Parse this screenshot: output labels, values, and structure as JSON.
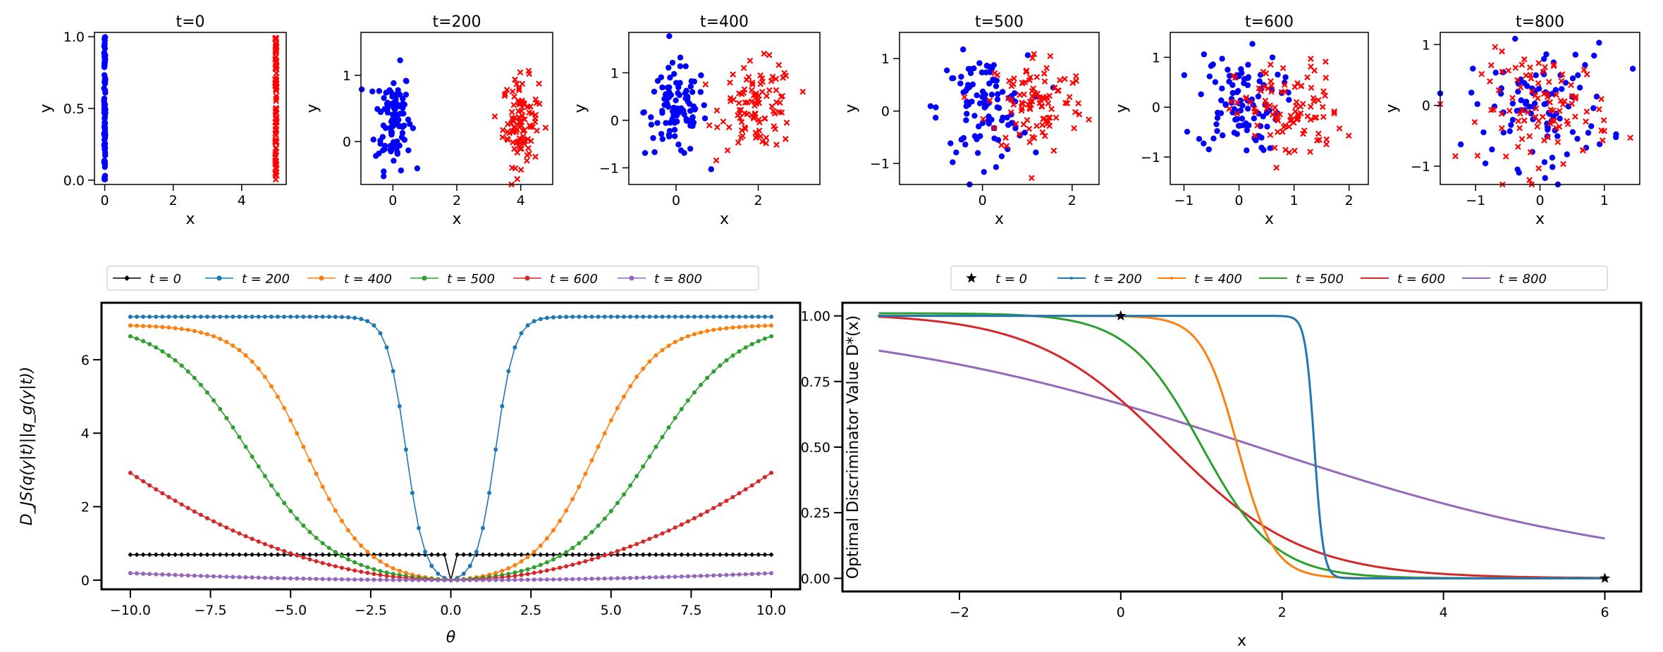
{
  "chart_data": [
    {
      "type": "scatter",
      "title": "t=0",
      "xlabel": "x",
      "ylabel": "y",
      "xlim": [
        -0.3,
        5.3
      ],
      "ylim": [
        -0.03,
        1.03
      ],
      "xticks": [
        0,
        2,
        4
      ],
      "yticks": [
        0.0,
        0.5,
        1.0
      ],
      "xtick_labels": [
        "0",
        "2",
        "4"
      ],
      "ytick_labels": [
        "0.0",
        "0.5",
        "1.0"
      ],
      "series": [
        {
          "marker": "circle",
          "color": "#0000ff",
          "x_center": 0,
          "x_spread": 0,
          "y_center": 0.5,
          "y_spread": 0.5,
          "distribution": "uniform",
          "count": 100
        },
        {
          "marker": "x",
          "color": "#ff0000",
          "x_center": 5,
          "x_spread": 0,
          "y_center": 0.5,
          "y_spread": 0.5,
          "distribution": "uniform",
          "count": 100
        }
      ]
    },
    {
      "type": "scatter",
      "title": "t=200",
      "xlabel": "x",
      "ylabel": "y",
      "xlim": [
        -1.0,
        5.0
      ],
      "ylim": [
        -0.65,
        1.65
      ],
      "xticks": [
        0,
        2,
        4
      ],
      "yticks": [
        0,
        1
      ],
      "xtick_labels": [
        "0",
        "2",
        "4"
      ],
      "ytick_labels": [
        "0",
        "1"
      ],
      "series": [
        {
          "marker": "circle",
          "color": "#0000ff",
          "x_center": 0.0,
          "x_spread": 0.28,
          "y_center": 0.35,
          "y_spread": 0.38,
          "distribution": "normal",
          "count": 100
        },
        {
          "marker": "x",
          "color": "#ff0000",
          "x_center": 4.0,
          "x_spread": 0.28,
          "y_center": 0.3,
          "y_spread": 0.33,
          "distribution": "normal",
          "count": 100
        }
      ]
    },
    {
      "type": "scatter",
      "title": "t=400",
      "xlabel": "x",
      "ylabel": "y",
      "xlim": [
        -1.15,
        3.5
      ],
      "ylim": [
        -1.35,
        1.85
      ],
      "xticks": [
        0,
        2
      ],
      "yticks": [
        -1,
        0,
        1
      ],
      "xtick_labels": [
        "0",
        "2"
      ],
      "ytick_labels": [
        "−1",
        "0",
        "1"
      ],
      "series": [
        {
          "marker": "circle",
          "color": "#0000ff",
          "x_center": 0.0,
          "x_spread": 0.38,
          "y_center": 0.2,
          "y_spread": 0.48,
          "distribution": "normal",
          "count": 100
        },
        {
          "marker": "x",
          "color": "#ff0000",
          "x_center": 2.0,
          "x_spread": 0.45,
          "y_center": 0.3,
          "y_spread": 0.45,
          "distribution": "normal",
          "count": 100
        }
      ]
    },
    {
      "type": "scatter",
      "title": "t=500",
      "xlabel": "x",
      "ylabel": "y",
      "xlim": [
        -1.85,
        2.6
      ],
      "ylim": [
        -1.4,
        1.5
      ],
      "xticks": [
        0,
        2
      ],
      "yticks": [
        -1,
        0,
        1
      ],
      "xtick_labels": [
        "0",
        "2"
      ],
      "ytick_labels": [
        "−1",
        "0",
        "1"
      ],
      "series": [
        {
          "marker": "circle",
          "color": "#0000ff",
          "x_center": 0.0,
          "x_spread": 0.5,
          "y_center": 0.05,
          "y_spread": 0.5,
          "distribution": "normal",
          "count": 100
        },
        {
          "marker": "x",
          "color": "#ff0000",
          "x_center": 1.2,
          "x_spread": 0.55,
          "y_center": 0.15,
          "y_spread": 0.5,
          "distribution": "normal",
          "count": 100
        }
      ]
    },
    {
      "type": "scatter",
      "title": "t=600",
      "xlabel": "x",
      "ylabel": "y",
      "xlim": [
        -1.25,
        2.35
      ],
      "ylim": [
        -1.55,
        1.5
      ],
      "xticks": [
        -1,
        0,
        1,
        2
      ],
      "yticks": [
        -1,
        0,
        1
      ],
      "xtick_labels": [
        "−1",
        "0",
        "1",
        "2"
      ],
      "ytick_labels": [
        "−1",
        "0",
        "1"
      ],
      "series": [
        {
          "marker": "circle",
          "color": "#0000ff",
          "x_center": 0.0,
          "x_spread": 0.38,
          "y_center": 0.1,
          "y_spread": 0.5,
          "distribution": "normal",
          "count": 100
        },
        {
          "marker": "x",
          "color": "#ff0000",
          "x_center": 0.9,
          "x_spread": 0.48,
          "y_center": -0.1,
          "y_spread": 0.5,
          "distribution": "normal",
          "count": 100
        }
      ]
    },
    {
      "type": "scatter",
      "title": "t=800",
      "xlabel": "x",
      "ylabel": "y",
      "xlim": [
        -1.55,
        1.55
      ],
      "ylim": [
        -1.3,
        1.2
      ],
      "xticks": [
        -1,
        0,
        1
      ],
      "yticks": [
        -1,
        0,
        1
      ],
      "xtick_labels": [
        "−1",
        "0",
        "1"
      ],
      "ytick_labels": [
        "−1",
        "0",
        "1"
      ],
      "series": [
        {
          "marker": "circle",
          "color": "#0000ff",
          "x_center": 0.0,
          "x_spread": 0.55,
          "y_center": 0.0,
          "y_spread": 0.5,
          "distribution": "normal",
          "count": 100
        },
        {
          "marker": "x",
          "color": "#ff0000",
          "x_center": 0.1,
          "x_spread": 0.5,
          "y_center": -0.05,
          "y_spread": 0.45,
          "distribution": "normal",
          "count": 100
        }
      ]
    },
    {
      "type": "line",
      "xlabel": "θ",
      "ylabel": "D_JS(q(y|t)||q_g(y|t))",
      "xlim": [
        -10.9,
        10.9
      ],
      "ylim": [
        -0.25,
        7.55
      ],
      "xticks": [
        -10.0,
        -7.5,
        -5.0,
        -2.5,
        0.0,
        2.5,
        5.0,
        7.5,
        10.0
      ],
      "yticks": [
        0,
        2,
        4,
        6
      ],
      "xtick_labels": [
        "−10.0",
        "−7.5",
        "−5.0",
        "−2.5",
        "0.0",
        "2.5",
        "5.0",
        "7.5",
        "10.0"
      ],
      "ytick_labels": [
        "0",
        "2",
        "4",
        "6"
      ],
      "legend_location": "top",
      "series": [
        {
          "name": "t = 0",
          "color": "#000000",
          "marker": "diamond",
          "x_range": [
            -10,
            10
          ],
          "n_points": 101,
          "plateau": 0.693,
          "half_width": 0.05,
          "shape": "step"
        },
        {
          "name": "t = 200",
          "color": "#1f77b4",
          "marker": "circle",
          "x_range": [
            -10,
            10
          ],
          "n_points": 101,
          "plateau": 7.17,
          "half_width": 1.4,
          "shape": "sigmoid"
        },
        {
          "name": "t = 400",
          "color": "#ff7f0e",
          "marker": "circle",
          "x_range": [
            -10,
            10
          ],
          "n_points": 101,
          "plateau": 6.95,
          "half_width": 4.5,
          "shape": "sigmoid"
        },
        {
          "name": "t = 500",
          "color": "#2ca02c",
          "marker": "circle",
          "x_range": [
            -10,
            10
          ],
          "n_points": 101,
          "plateau": 7.05,
          "half_width": 6.3,
          "shape": "sigmoid"
        },
        {
          "name": "t = 600",
          "color": "#d62728",
          "marker": "circle",
          "x_range": [
            -10,
            10
          ],
          "n_points": 101,
          "end_value": 2.92,
          "shape": "quadratic"
        },
        {
          "name": "t = 800",
          "color": "#9467bd",
          "marker": "circle",
          "x_range": [
            -10,
            10
          ],
          "n_points": 101,
          "end_value": 0.19,
          "shape": "quadratic"
        }
      ]
    },
    {
      "type": "line",
      "xlabel": "x",
      "ylabel": "Optimal Discriminator Value D*(x)",
      "xlim": [
        -3.45,
        6.45
      ],
      "ylim": [
        -0.05,
        1.05
      ],
      "xticks": [
        -2,
        0,
        2,
        4,
        6
      ],
      "yticks": [
        0.0,
        0.25,
        0.5,
        0.75,
        1.0
      ],
      "xtick_labels": [
        "−2",
        "0",
        "2",
        "4",
        "6"
      ],
      "ytick_labels": [
        "0.00",
        "0.25",
        "0.50",
        "0.75",
        "1.00"
      ],
      "legend_location": "top",
      "series": [
        {
          "name": "t = 0",
          "color": "#000000",
          "marker": "star",
          "points": [
            [
              0,
              1.0
            ],
            [
              6,
              0.0
            ]
          ]
        },
        {
          "name": "t = 200",
          "color": "#1f77b4",
          "marker": "dot",
          "x_range": [
            -3,
            6
          ],
          "midpoint": 2.4,
          "slope": 18,
          "top": 1.0,
          "bottom": 0.0
        },
        {
          "name": "t = 400",
          "color": "#ff7f0e",
          "marker": "dot",
          "x_range": [
            -3,
            6
          ],
          "midpoint": 1.45,
          "slope": 4.5,
          "top": 1.0,
          "bottom": 0.0
        },
        {
          "name": "t = 500",
          "color": "#2ca02c",
          "marker": "none",
          "x_range": [
            -3,
            6
          ],
          "midpoint": 1.0,
          "slope": 2.2,
          "top": 1.01,
          "bottom": 0.0
        },
        {
          "name": "t = 600",
          "color": "#d62728",
          "marker": "none",
          "x_range": [
            -3,
            6
          ],
          "midpoint": 0.6,
          "slope": 1.2,
          "top": 1.01,
          "bottom": 0.0
        },
        {
          "name": "t = 800",
          "color": "#9467bd",
          "marker": "none",
          "x_range": [
            -3,
            6
          ],
          "midpoint": 1.7,
          "slope": 0.4,
          "top": 1.0,
          "bottom": 0.0
        }
      ]
    }
  ]
}
